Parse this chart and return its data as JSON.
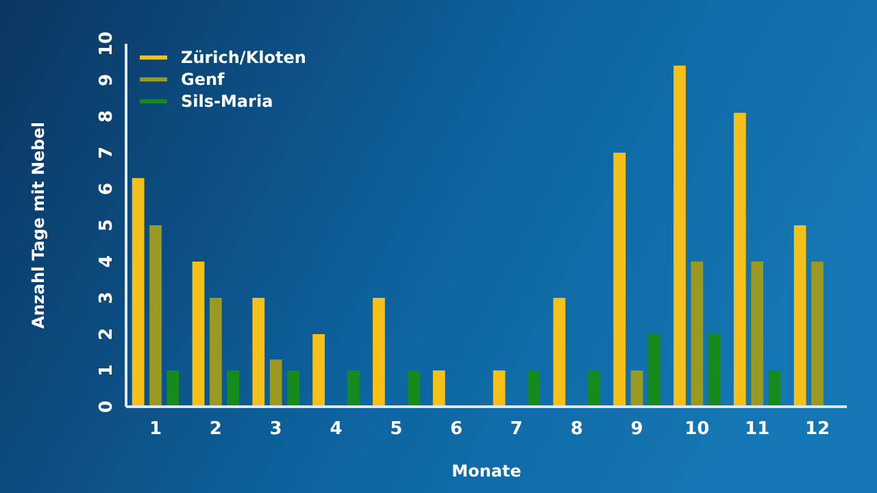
{
  "chart_data": {
    "type": "bar",
    "xlabel": "Monate",
    "ylabel": "Anzahl Tage mit Nebel",
    "categories": [
      "1",
      "2",
      "3",
      "4",
      "5",
      "6",
      "7",
      "8",
      "9",
      "10",
      "11",
      "12"
    ],
    "series": [
      {
        "name": "Zürich/Kloten",
        "color": "#f5c01a",
        "values": [
          6.3,
          4,
          3,
          2,
          3,
          1,
          1,
          3,
          7,
          9.4,
          8.1,
          5
        ]
      },
      {
        "name": "Genf",
        "color": "#9a9a22",
        "values": [
          5,
          3,
          1.3,
          0,
          0,
          0,
          0,
          0,
          1,
          4,
          4,
          4
        ]
      },
      {
        "name": "Sils-Maria",
        "color": "#178a1e",
        "values": [
          1,
          1,
          1,
          1,
          1,
          0,
          1,
          1,
          2,
          2,
          1,
          0
        ]
      }
    ],
    "ylim": [
      0,
      10
    ],
    "yticks": [
      0,
      1,
      2,
      3,
      4,
      5,
      6,
      7,
      8,
      9,
      10
    ],
    "grid": false,
    "legend": "top left"
  }
}
